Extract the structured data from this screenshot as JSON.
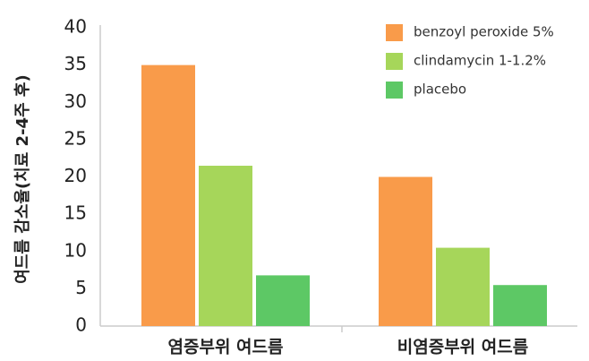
{
  "chart_data": {
    "type": "bar",
    "y_label": "여드름 감소율(치료 2-4주 후)",
    "categories": [
      "염증부위 여드름",
      "비염증부위 여드름"
    ],
    "series": [
      {
        "name": "benzoyl peroxide 5%",
        "color": "#f99b4a",
        "values": [
          35,
          20
        ]
      },
      {
        "name": "clindamycin 1-1.2%",
        "color": "#a6d65a",
        "values": [
          21.5,
          10.5
        ]
      },
      {
        "name": "placebo",
        "color": "#5dc865",
        "values": [
          6.8,
          5.5
        ]
      }
    ],
    "ylim": [
      0,
      40
    ],
    "yticks": [
      0,
      5,
      10,
      15,
      20,
      25,
      30,
      35,
      40
    ],
    "grid": false
  }
}
